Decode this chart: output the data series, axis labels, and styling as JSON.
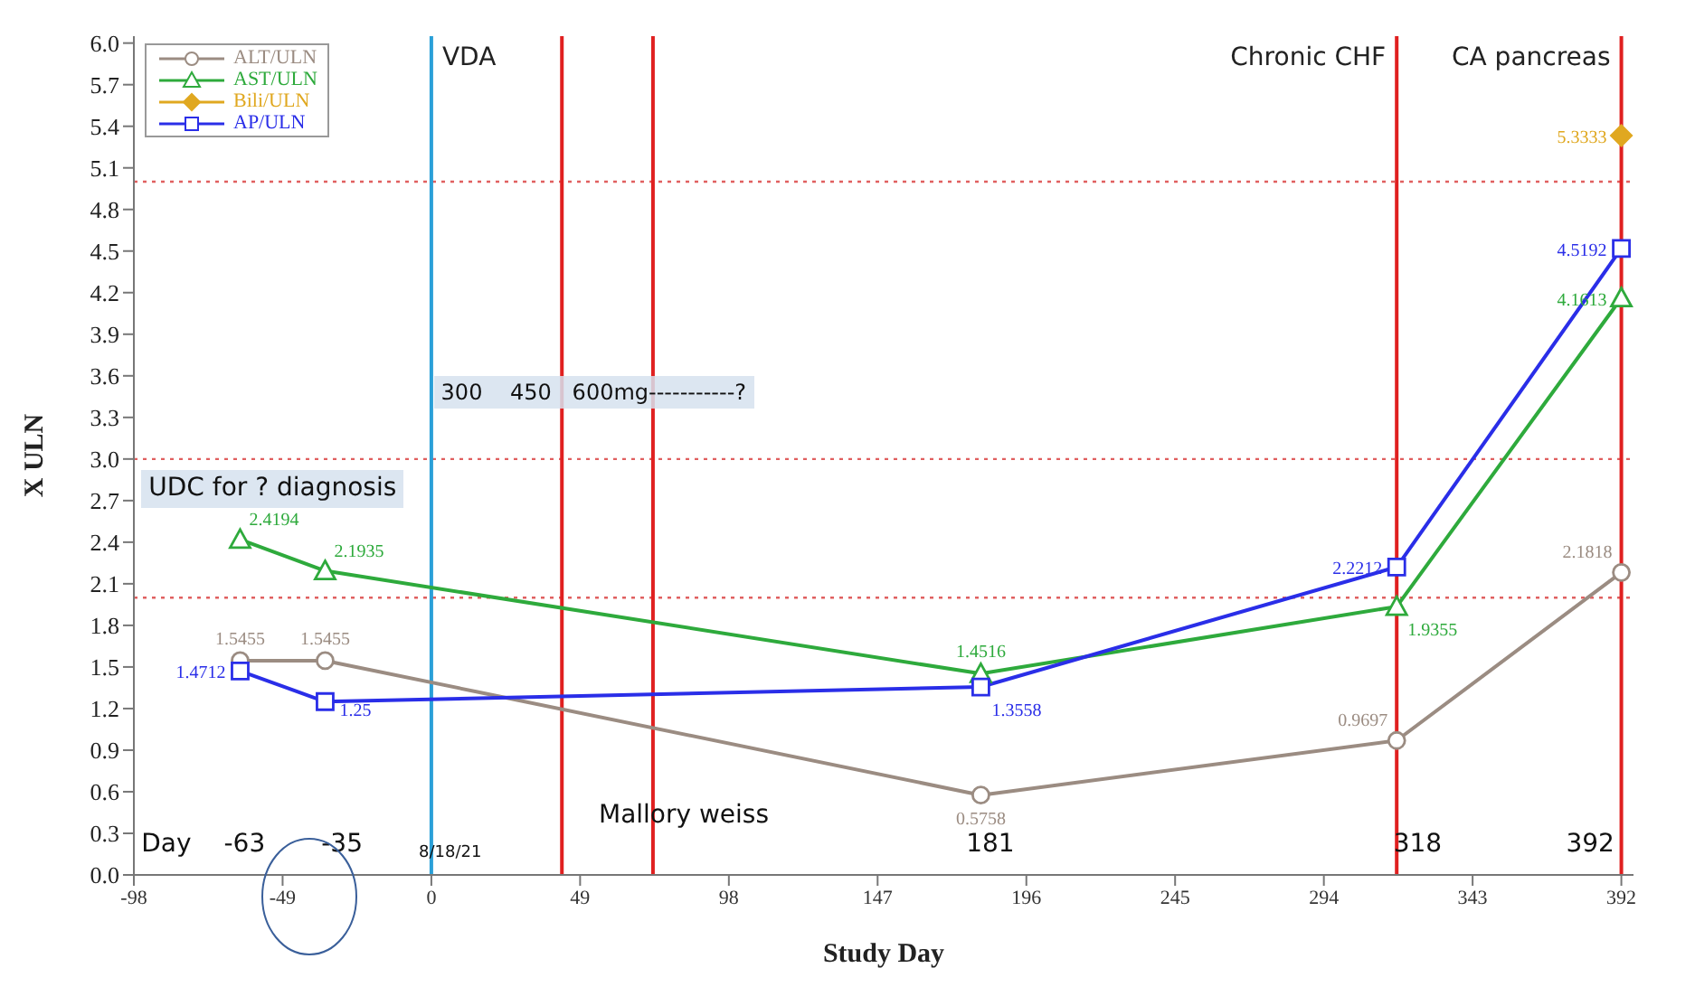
{
  "chart_data": {
    "type": "line",
    "xlabel": "Study Day",
    "ylabel": "X ULN",
    "x": [
      -63,
      -35,
      181,
      318,
      392
    ],
    "series": [
      {
        "name": "ALT/ULN",
        "color": "#9b8c82",
        "marker": "circle",
        "values": [
          1.5455,
          1.5455,
          0.5758,
          0.9697,
          2.1818
        ]
      },
      {
        "name": "AST/ULN",
        "color": "#2eaa3c",
        "marker": "triangle",
        "values": [
          2.4194,
          2.1935,
          1.4516,
          1.9355,
          4.1613
        ]
      },
      {
        "name": "Bili/ULN",
        "color": "#e0a820",
        "marker": "diamond",
        "values": [
          null,
          null,
          null,
          null,
          5.3333
        ]
      },
      {
        "name": "AP/ULN",
        "color": "#2a2ee8",
        "marker": "square",
        "values": [
          1.4712,
          1.25,
          1.3558,
          2.2212,
          4.5192
        ]
      }
    ],
    "data_labels": true,
    "xlim": [
      -98,
      396
    ],
    "xticks": [
      -98,
      -49,
      0,
      49,
      98,
      147,
      196,
      245,
      294,
      343,
      392
    ],
    "ylim": [
      0,
      6.05
    ],
    "yticks": [
      {
        "value": 0,
        "label": "0.0"
      },
      {
        "value": 0.3,
        "label": "0.3"
      },
      {
        "value": 0.6,
        "label": "0.6"
      },
      {
        "value": 0.9,
        "label": "0.9"
      },
      {
        "value": 1.2,
        "label": "1.2"
      },
      {
        "value": 1.5,
        "label": "1.5"
      },
      {
        "value": 1.8,
        "label": "1.8"
      },
      {
        "value": 2.1,
        "label": "2.1"
      },
      {
        "value": 2.4,
        "label": "2.4"
      },
      {
        "value": 2.7,
        "label": "2.7"
      },
      {
        "value": 3.0,
        "label": "3.0"
      },
      {
        "value": 3.3,
        "label": "3.3"
      },
      {
        "value": 3.6,
        "label": "3.6"
      },
      {
        "value": 3.9,
        "label": "3.9"
      },
      {
        "value": 4.2,
        "label": "4.2"
      },
      {
        "value": 4.5,
        "label": "4.5"
      },
      {
        "value": 4.8,
        "label": "4.8"
      },
      {
        "value": 5.1,
        "label": "5.1"
      },
      {
        "value": 5.4,
        "label": "5.4"
      },
      {
        "value": 5.7,
        "label": "5.7"
      },
      {
        "value": 6.0,
        "label": "6.0"
      }
    ],
    "legend": "top left",
    "ref_lines": [
      {
        "axis": "y",
        "value": 2,
        "color": "#e06060",
        "line_style": "dotted"
      },
      {
        "axis": "y",
        "value": 3,
        "color": "#e06060",
        "line_style": "dotted"
      },
      {
        "axis": "y",
        "value": 5,
        "color": "#e06060",
        "line_style": "dotted"
      },
      {
        "axis": "x",
        "value": 0,
        "label": "VDA",
        "color": "#2aa0d8",
        "line_style": "solid"
      },
      {
        "axis": "x",
        "value": 43,
        "color": "#e02020",
        "line_style": "solid"
      },
      {
        "axis": "x",
        "value": 73,
        "color": "#e02020",
        "line_style": "solid"
      },
      {
        "axis": "x",
        "value": 318,
        "label": "Chronic CHF",
        "color": "#e02020",
        "line_style": "solid"
      },
      {
        "axis": "x",
        "value": 392,
        "label": "CA pancreas",
        "color": "#e02020",
        "line_style": "solid"
      }
    ],
    "annotations": [
      "300    450   600mg-----------?",
      "UDC for ? diagnosis",
      "8/18/21",
      "Mallory weiss",
      "Day",
      "-63",
      "-35",
      "181",
      "318",
      "392"
    ]
  }
}
